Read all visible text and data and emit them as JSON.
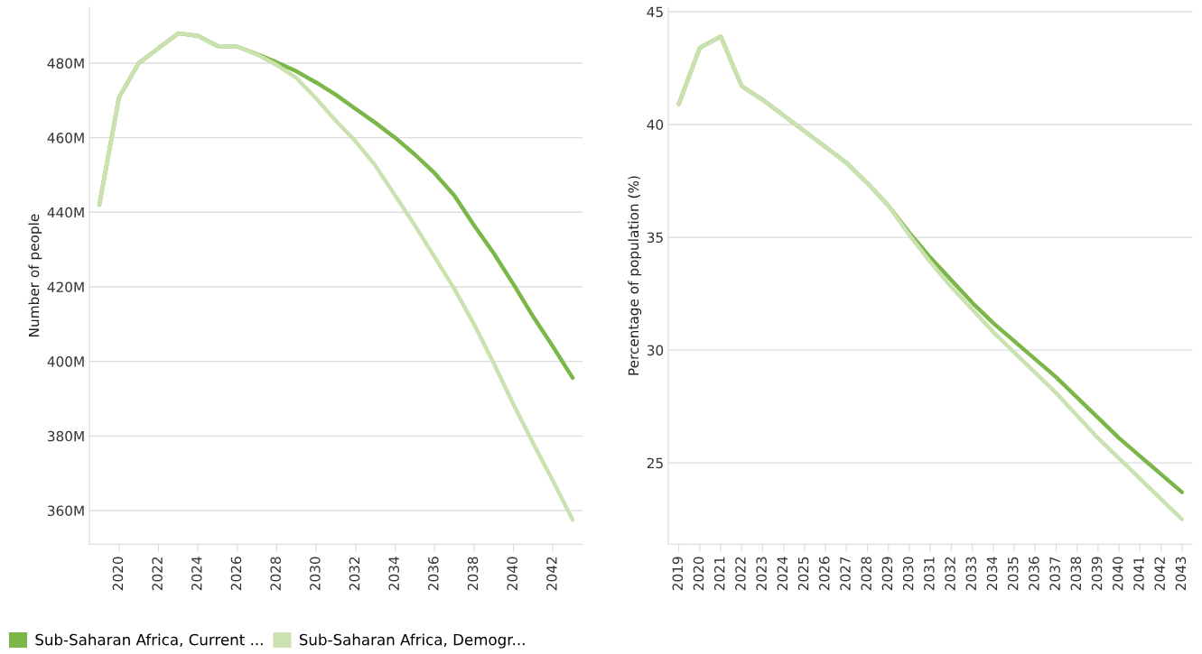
{
  "chart_data": [
    {
      "type": "line",
      "ylabel": "Number of people",
      "x": [
        2019,
        2020,
        2021,
        2022,
        2023,
        2024,
        2025,
        2026,
        2027,
        2028,
        2029,
        2030,
        2031,
        2032,
        2033,
        2034,
        2035,
        2036,
        2037,
        2038,
        2039,
        2040,
        2041,
        2042,
        2043
      ],
      "series": [
        {
          "name": "Sub-Saharan Africa, Current ...",
          "color": "#7ab648",
          "values": [
            442,
            470.8,
            480,
            484,
            488,
            487.3,
            484.6,
            484.4,
            482.4,
            480.2,
            477.8,
            474.8,
            471.5,
            467.7,
            464,
            460,
            455.5,
            450.5,
            444.5,
            436.5,
            429,
            420.7,
            412,
            404,
            395.6
          ]
        },
        {
          "name": "Sub-Saharan Africa, Demogr...",
          "color": "#c9e2b0",
          "values": [
            442,
            470.8,
            480,
            484,
            488,
            487.3,
            484.6,
            484.4,
            482.3,
            479.5,
            476,
            470.5,
            464.5,
            459,
            452.5,
            444.5,
            436.5,
            428,
            419.5,
            410,
            399.5,
            388.5,
            378,
            368,
            357.5
          ]
        }
      ],
      "xlim": [
        2018.5,
        2043.5
      ],
      "xticks": [
        2020,
        2022,
        2024,
        2026,
        2028,
        2030,
        2032,
        2034,
        2036,
        2038,
        2040,
        2042
      ],
      "ylim": [
        351,
        495
      ],
      "yticks": [
        {
          "value": 360,
          "label": "360M"
        },
        {
          "value": 380,
          "label": "380M"
        },
        {
          "value": 400,
          "label": "400M"
        },
        {
          "value": 420,
          "label": "420M"
        },
        {
          "value": 440,
          "label": "440M"
        },
        {
          "value": 460,
          "label": "460M"
        },
        {
          "value": 480,
          "label": "480M"
        }
      ],
      "grid": "y",
      "legend": "bottom",
      "marker": "none",
      "line_style": "solid"
    },
    {
      "type": "line",
      "ylabel": "Percentage of population (%)",
      "categories": [
        "2019",
        "2020",
        "2021",
        "2022",
        "2023",
        "2024",
        "2025",
        "2026",
        "2027",
        "2028",
        "2029",
        "2030",
        "2031",
        "2032",
        "2033",
        "2034",
        "2035",
        "2036",
        "2037",
        "2038",
        "2039",
        "2040",
        "2041",
        "2042",
        "2043"
      ],
      "series": [
        {
          "color": "#7ab648",
          "values": [
            40.9,
            43.4,
            43.9,
            41.7,
            41.1,
            40.4,
            39.7,
            39.0,
            38.3,
            37.4,
            36.4,
            35.2,
            34.1,
            33.1,
            32.1,
            31.2,
            30.4,
            29.6,
            28.8,
            27.9,
            27.0,
            26.1,
            25.3,
            24.5,
            23.7
          ]
        },
        {
          "color": "#c9e2b0",
          "values": [
            40.9,
            43.4,
            43.9,
            41.7,
            41.1,
            40.4,
            39.7,
            39.0,
            38.3,
            37.4,
            36.4,
            35.1,
            33.9,
            32.8,
            31.8,
            30.8,
            29.9,
            29.0,
            28.1,
            27.1,
            26.1,
            25.2,
            24.3,
            23.4,
            22.5
          ]
        }
      ],
      "ylim": [
        21.4,
        45.2
      ],
      "yticks": [
        25,
        30,
        35,
        40,
        45
      ],
      "grid": "y",
      "marker": "none",
      "line_style": "solid"
    }
  ]
}
